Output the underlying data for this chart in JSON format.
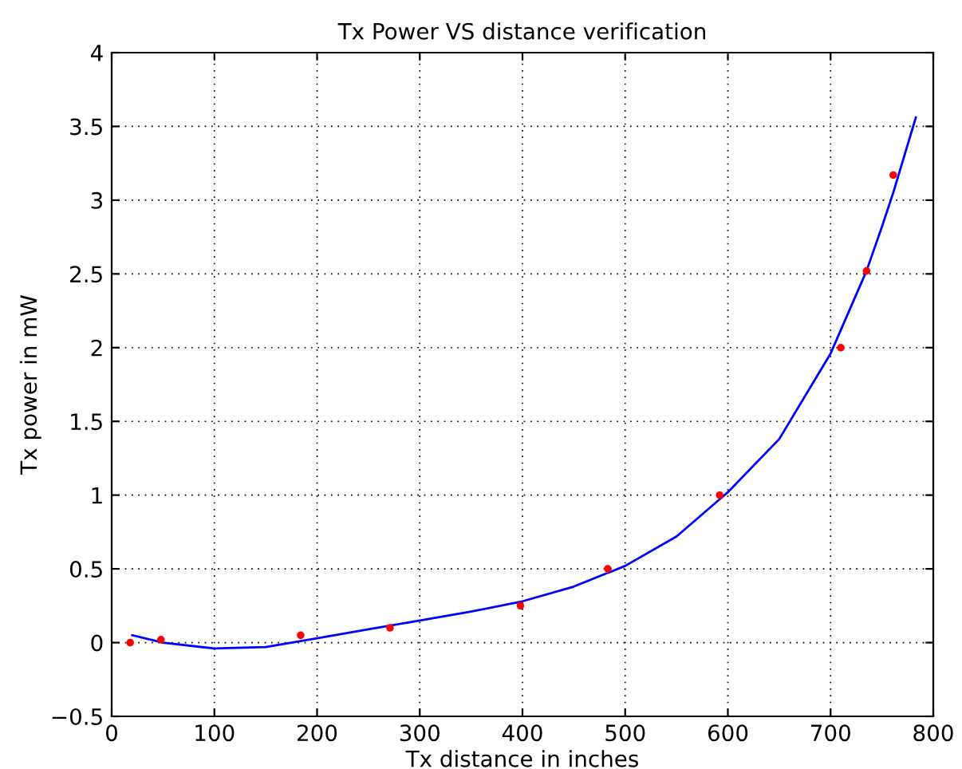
{
  "chart_data": {
    "type": "scatter",
    "title": "Tx Power VS distance verification",
    "xlabel": "Tx distance in inches",
    "ylabel": "Tx power in mW",
    "xlim": [
      0,
      800
    ],
    "xticks": [
      0,
      100,
      200,
      300,
      400,
      500,
      600,
      700,
      800
    ],
    "ylim": [
      -0.5,
      4
    ],
    "yticks": [
      -0.5,
      0,
      0.5,
      1,
      1.5,
      2,
      2.5,
      3,
      3.5,
      4
    ],
    "grid": true,
    "legend": false,
    "series": [
      {
        "color": "#ff0000",
        "marker": "circle",
        "x": [
          18,
          48,
          184,
          271,
          398,
          483,
          592,
          710,
          735,
          761
        ],
        "values": [
          0.0,
          0.02,
          0.05,
          0.1,
          0.25,
          0.5,
          1.0,
          2.0,
          2.52,
          3.17
        ]
      },
      {
        "type": "line",
        "color": "#0000ff",
        "marker": "none",
        "line_style": "solid",
        "x": [
          20,
          50,
          100,
          150,
          200,
          250,
          300,
          350,
          400,
          450,
          500,
          550,
          600,
          650,
          700,
          735,
          750,
          761,
          783
        ],
        "values": [
          0.05,
          0.0,
          -0.04,
          -0.03,
          0.03,
          0.09,
          0.15,
          0.21,
          0.28,
          0.38,
          0.52,
          0.72,
          1.02,
          1.38,
          1.96,
          2.52,
          2.82,
          3.05,
          3.56
        ]
      }
    ]
  }
}
